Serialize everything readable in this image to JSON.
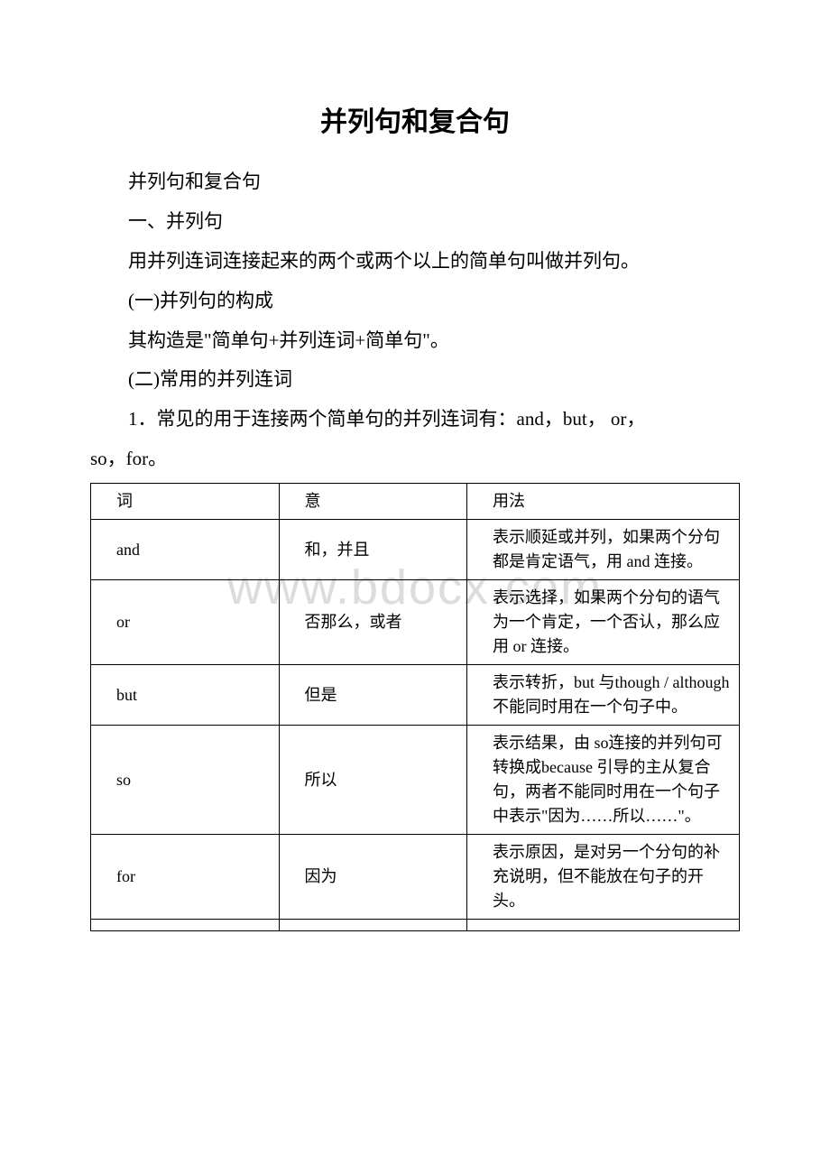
{
  "title": "并列句和复合句",
  "paragraphs": {
    "p1": "并列句和复合句",
    "p2": "一、并列句",
    "p3": "用并列连词连接起来的两个或两个以上的简单句叫做并列句。",
    "p4": "(一)并列句的构成",
    "p5": "其构造是\"简单句+并列连词+简单句\"。",
    "p6": "(二)常用的并列连词",
    "p7_a": "1．常见的用于连接两个简单句的并列连词有：and，but， or，",
    "p7_b": "so，for。"
  },
  "table": {
    "header": {
      "c1": "词",
      "c2": "意",
      "c3": "用法"
    },
    "rows": [
      {
        "c1": "and",
        "c2": "和，并且",
        "c3_first": "表示顺延或并列，",
        "c3_rest": "如果两个分句都是肯定语气，用 and 连接。"
      },
      {
        "c1": "or",
        "c2": "否那么，或者",
        "c3_first": "表示选择，如果两",
        "c3_rest": "个分句的语气为一个肯定，一个否认，那么应用 or 连接。"
      },
      {
        "c1": "but",
        "c2": "但是",
        "c3_first": "表示转折，but 与",
        "c3_rest": "though / although 不能同时用在一个句子中。"
      },
      {
        "c1": "so",
        "c2": "所以",
        "c3_first": "表示结果，由 so",
        "c3_rest": "连接的并列句可转换成because 引导的主从复合句，两者不能同时用在一个句子中表示\"因为……所以……\"。"
      },
      {
        "c1": "for",
        "c2": "因为",
        "c3_first": "表示原因，是对另",
        "c3_rest": "一个分句的补充说明，但不能放在句子的开头。"
      }
    ]
  },
  "watermark": "www.bdocx.com",
  "colors": {
    "text": "#000000",
    "background": "#ffffff",
    "border": "#000000",
    "watermark": "#dcdcdc"
  },
  "typography": {
    "title_fontsize": 30,
    "body_fontsize": 21,
    "table_fontsize": 18,
    "watermark_fontsize": 54
  }
}
